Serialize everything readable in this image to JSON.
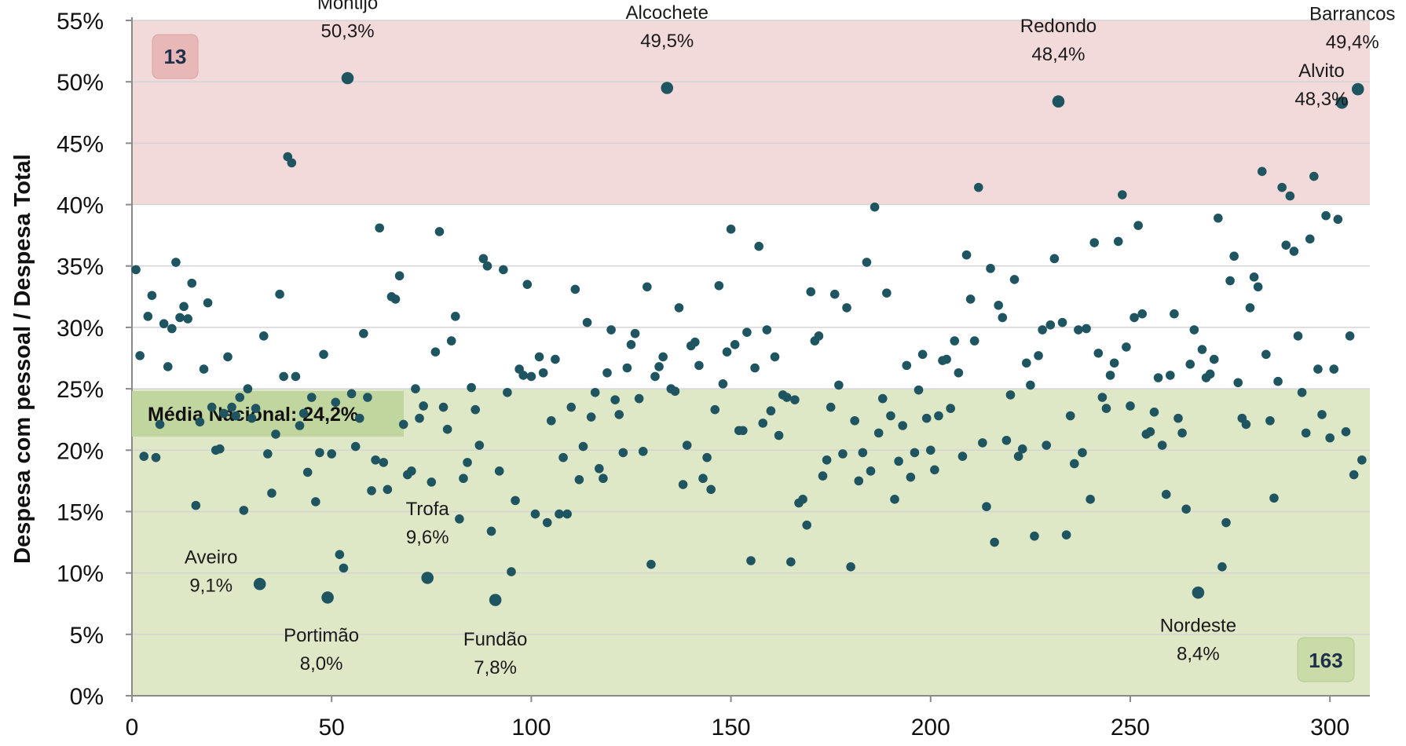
{
  "chart_data": {
    "type": "scatter",
    "title": "",
    "xlabel": "",
    "ylabel": "Despesa com pessoal / Despesa Total",
    "xlim": [
      0,
      310
    ],
    "ylim": [
      0,
      55
    ],
    "x_ticks": [
      "0",
      "50",
      "100",
      "150",
      "200",
      "250",
      "300"
    ],
    "y_ticks": [
      "0%",
      "5%",
      "10%",
      "15%",
      "20%",
      "25%",
      "30%",
      "35%",
      "40%",
      "45%",
      "50%",
      "55%"
    ],
    "grid": "horizontal",
    "bands": [
      {
        "from": 0,
        "to": 25,
        "color": "#dfe8c6"
      },
      {
        "from": 40,
        "to": 55,
        "color": "#f2dada"
      }
    ],
    "average": {
      "label": "Média Nacional: 24,2%",
      "value": 24.2
    },
    "count_high": "13",
    "count_low": "163",
    "point_color": "#1f5560",
    "annotations": [
      {
        "name": "Montijo",
        "value_text": "50,3%",
        "x": 54,
        "y": 50.3
      },
      {
        "name": "Alcochete",
        "value_text": "49,5%",
        "x": 134,
        "y": 49.5
      },
      {
        "name": "Redondo",
        "value_text": "48,4%",
        "x": 232,
        "y": 48.4
      },
      {
        "name": "Barrancos",
        "value_text": "49,4%",
        "x": 307,
        "y": 49.4
      },
      {
        "name": "Alvito",
        "value_text": "48,3%",
        "x": 303,
        "y": 48.3
      },
      {
        "name": "Aveiro",
        "value_text": "9,1%",
        "x": 32,
        "y": 9.1
      },
      {
        "name": "Portimão",
        "value_text": "8,0%",
        "x": 49,
        "y": 8.0
      },
      {
        "name": "Trofa",
        "value_text": "9,6%",
        "x": 74,
        "y": 9.6
      },
      {
        "name": "Fundão",
        "value_text": "7,8%",
        "x": 91,
        "y": 7.8
      },
      {
        "name": "Nordeste",
        "value_text": "8,4%",
        "x": 267,
        "y": 8.4
      }
    ],
    "points": [
      [
        1,
        34.7
      ],
      [
        2,
        27.7
      ],
      [
        3,
        19.5
      ],
      [
        4,
        30.9
      ],
      [
        5,
        32.6
      ],
      [
        6,
        19.4
      ],
      [
        7,
        22.1
      ],
      [
        8,
        30.3
      ],
      [
        9,
        26.8
      ],
      [
        10,
        29.9
      ],
      [
        11,
        35.3
      ],
      [
        12,
        30.8
      ],
      [
        13,
        31.7
      ],
      [
        14,
        30.7
      ],
      [
        15,
        33.6
      ],
      [
        16,
        15.5
      ],
      [
        17,
        22.3
      ],
      [
        18,
        26.6
      ],
      [
        19,
        32.0
      ],
      [
        20,
        23.5
      ],
      [
        21,
        20.0
      ],
      [
        22,
        20.1
      ],
      [
        23,
        23.0
      ],
      [
        24,
        27.6
      ],
      [
        25,
        23.5
      ],
      [
        26,
        22.8
      ],
      [
        27,
        24.3
      ],
      [
        28,
        15.1
      ],
      [
        29,
        25.0
      ],
      [
        30,
        22.6
      ],
      [
        31,
        23.4
      ],
      [
        33,
        29.3
      ],
      [
        34,
        19.7
      ],
      [
        35,
        16.5
      ],
      [
        36,
        21.3
      ],
      [
        37,
        32.7
      ],
      [
        38,
        26.0
      ],
      [
        39,
        43.9
      ],
      [
        40,
        43.4
      ],
      [
        41,
        26.0
      ],
      [
        42,
        22.0
      ],
      [
        43,
        23.0
      ],
      [
        44,
        18.2
      ],
      [
        45,
        24.3
      ],
      [
        46,
        15.8
      ],
      [
        47,
        19.8
      ],
      [
        48,
        27.8
      ],
      [
        50,
        19.7
      ],
      [
        51,
        23.9
      ],
      [
        52,
        11.5
      ],
      [
        53,
        10.4
      ],
      [
        55,
        24.6
      ],
      [
        56,
        20.3
      ],
      [
        57,
        22.6
      ],
      [
        58,
        29.5
      ],
      [
        59,
        24.3
      ],
      [
        60,
        16.7
      ],
      [
        61,
        19.2
      ],
      [
        62,
        38.1
      ],
      [
        63,
        19.0
      ],
      [
        64,
        16.8
      ],
      [
        65,
        32.5
      ],
      [
        66,
        32.3
      ],
      [
        67,
        34.2
      ],
      [
        68,
        22.1
      ],
      [
        69,
        18.0
      ],
      [
        70,
        18.3
      ],
      [
        71,
        25.0
      ],
      [
        72,
        22.6
      ],
      [
        73,
        23.6
      ],
      [
        75,
        17.4
      ],
      [
        76,
        28.0
      ],
      [
        77,
        37.8
      ],
      [
        78,
        23.5
      ],
      [
        79,
        21.7
      ],
      [
        80,
        28.9
      ],
      [
        81,
        30.9
      ],
      [
        82,
        14.4
      ],
      [
        83,
        17.7
      ],
      [
        84,
        19.0
      ],
      [
        85,
        25.1
      ],
      [
        86,
        23.3
      ],
      [
        87,
        20.4
      ],
      [
        88,
        35.6
      ],
      [
        89,
        35.0
      ],
      [
        90,
        13.4
      ],
      [
        92,
        18.3
      ],
      [
        93,
        34.7
      ],
      [
        94,
        24.7
      ],
      [
        95,
        10.1
      ],
      [
        96,
        15.9
      ],
      [
        97,
        26.6
      ],
      [
        98,
        26.1
      ],
      [
        99,
        33.5
      ],
      [
        100,
        26.0
      ],
      [
        101,
        14.8
      ],
      [
        102,
        27.6
      ],
      [
        103,
        26.3
      ],
      [
        104,
        14.1
      ],
      [
        105,
        22.4
      ],
      [
        106,
        27.4
      ],
      [
        107,
        14.8
      ],
      [
        108,
        19.4
      ],
      [
        109,
        14.8
      ],
      [
        110,
        23.5
      ],
      [
        111,
        33.1
      ],
      [
        112,
        17.6
      ],
      [
        113,
        20.3
      ],
      [
        114,
        30.4
      ],
      [
        115,
        22.7
      ],
      [
        116,
        24.7
      ],
      [
        117,
        18.5
      ],
      [
        118,
        17.7
      ],
      [
        119,
        26.3
      ],
      [
        120,
        29.8
      ],
      [
        121,
        24.1
      ],
      [
        122,
        22.9
      ],
      [
        123,
        19.8
      ],
      [
        124,
        26.7
      ],
      [
        125,
        28.6
      ],
      [
        126,
        29.5
      ],
      [
        127,
        24.2
      ],
      [
        128,
        19.9
      ],
      [
        129,
        33.3
      ],
      [
        130,
        10.7
      ],
      [
        131,
        26.0
      ],
      [
        132,
        26.8
      ],
      [
        133,
        27.6
      ],
      [
        135,
        25.0
      ],
      [
        136,
        24.8
      ],
      [
        137,
        31.6
      ],
      [
        138,
        17.2
      ],
      [
        139,
        20.4
      ],
      [
        140,
        28.5
      ],
      [
        141,
        28.8
      ],
      [
        142,
        26.9
      ],
      [
        143,
        17.7
      ],
      [
        144,
        19.4
      ],
      [
        145,
        16.8
      ],
      [
        146,
        23.3
      ],
      [
        147,
        33.4
      ],
      [
        148,
        25.4
      ],
      [
        149,
        28.0
      ],
      [
        150,
        38.0
      ],
      [
        151,
        28.6
      ],
      [
        152,
        21.6
      ],
      [
        153,
        21.6
      ],
      [
        154,
        29.6
      ],
      [
        155,
        11.0
      ],
      [
        156,
        26.7
      ],
      [
        157,
        36.6
      ],
      [
        158,
        22.2
      ],
      [
        159,
        29.8
      ],
      [
        160,
        23.2
      ],
      [
        161,
        27.6
      ],
      [
        162,
        21.2
      ],
      [
        163,
        24.5
      ],
      [
        164,
        24.3
      ],
      [
        165,
        10.9
      ],
      [
        166,
        24.1
      ],
      [
        167,
        15.7
      ],
      [
        168,
        16.0
      ],
      [
        169,
        13.9
      ],
      [
        170,
        32.9
      ],
      [
        171,
        28.9
      ],
      [
        172,
        29.3
      ],
      [
        173,
        17.9
      ],
      [
        174,
        19.2
      ],
      [
        175,
        23.5
      ],
      [
        176,
        32.7
      ],
      [
        177,
        25.3
      ],
      [
        178,
        19.7
      ],
      [
        179,
        31.6
      ],
      [
        180,
        10.5
      ],
      [
        181,
        22.4
      ],
      [
        182,
        17.5
      ],
      [
        183,
        19.8
      ],
      [
        184,
        35.3
      ],
      [
        185,
        18.3
      ],
      [
        186,
        39.8
      ],
      [
        187,
        21.4
      ],
      [
        188,
        24.2
      ],
      [
        189,
        32.8
      ],
      [
        190,
        22.8
      ],
      [
        191,
        16.0
      ],
      [
        192,
        19.1
      ],
      [
        193,
        22.0
      ],
      [
        194,
        26.9
      ],
      [
        195,
        17.8
      ],
      [
        196,
        19.8
      ],
      [
        197,
        24.9
      ],
      [
        198,
        27.8
      ],
      [
        199,
        22.6
      ],
      [
        200,
        20.0
      ],
      [
        201,
        18.4
      ],
      [
        202,
        22.8
      ],
      [
        203,
        27.3
      ],
      [
        204,
        27.4
      ],
      [
        205,
        23.4
      ],
      [
        206,
        28.9
      ],
      [
        207,
        26.3
      ],
      [
        208,
        19.5
      ],
      [
        209,
        35.9
      ],
      [
        210,
        32.3
      ],
      [
        211,
        28.9
      ],
      [
        212,
        41.4
      ],
      [
        213,
        20.6
      ],
      [
        214,
        15.4
      ],
      [
        215,
        34.8
      ],
      [
        216,
        12.5
      ],
      [
        217,
        31.8
      ],
      [
        218,
        30.8
      ],
      [
        219,
        20.8
      ],
      [
        220,
        24.5
      ],
      [
        221,
        33.9
      ],
      [
        222,
        19.5
      ],
      [
        223,
        20.1
      ],
      [
        224,
        27.1
      ],
      [
        225,
        25.3
      ],
      [
        226,
        13.0
      ],
      [
        227,
        27.7
      ],
      [
        228,
        29.8
      ],
      [
        229,
        20.4
      ],
      [
        230,
        30.2
      ],
      [
        231,
        35.6
      ],
      [
        233,
        30.4
      ],
      [
        234,
        13.1
      ],
      [
        235,
        22.8
      ],
      [
        236,
        18.9
      ],
      [
        237,
        29.8
      ],
      [
        238,
        19.8
      ],
      [
        239,
        29.9
      ],
      [
        240,
        16.0
      ],
      [
        241,
        36.9
      ],
      [
        242,
        27.9
      ],
      [
        243,
        24.3
      ],
      [
        244,
        23.4
      ],
      [
        245,
        26.1
      ],
      [
        246,
        27.1
      ],
      [
        247,
        37.0
      ],
      [
        248,
        40.8
      ],
      [
        249,
        28.4
      ],
      [
        250,
        23.6
      ],
      [
        251,
        30.8
      ],
      [
        252,
        38.3
      ],
      [
        253,
        31.1
      ],
      [
        254,
        21.3
      ],
      [
        255,
        21.5
      ],
      [
        256,
        23.1
      ],
      [
        257,
        25.9
      ],
      [
        258,
        20.4
      ],
      [
        259,
        16.4
      ],
      [
        260,
        26.1
      ],
      [
        261,
        31.1
      ],
      [
        262,
        22.6
      ],
      [
        263,
        21.4
      ],
      [
        264,
        15.2
      ],
      [
        265,
        27.0
      ],
      [
        266,
        29.8
      ],
      [
        268,
        28.2
      ],
      [
        269,
        25.9
      ],
      [
        270,
        26.2
      ],
      [
        271,
        27.4
      ],
      [
        272,
        38.9
      ],
      [
        273,
        10.5
      ],
      [
        274,
        14.1
      ],
      [
        275,
        33.8
      ],
      [
        276,
        35.8
      ],
      [
        277,
        25.5
      ],
      [
        278,
        22.6
      ],
      [
        279,
        22.1
      ],
      [
        280,
        31.6
      ],
      [
        281,
        34.1
      ],
      [
        282,
        33.3
      ],
      [
        283,
        42.7
      ],
      [
        284,
        27.8
      ],
      [
        285,
        22.4
      ],
      [
        286,
        16.1
      ],
      [
        287,
        25.6
      ],
      [
        288,
        41.4
      ],
      [
        289,
        36.7
      ],
      [
        290,
        40.7
      ],
      [
        291,
        36.2
      ],
      [
        292,
        29.3
      ],
      [
        293,
        24.7
      ],
      [
        294,
        21.4
      ],
      [
        295,
        37.2
      ],
      [
        296,
        42.3
      ],
      [
        297,
        26.6
      ],
      [
        298,
        22.9
      ],
      [
        299,
        39.1
      ],
      [
        300,
        21.0
      ],
      [
        301,
        26.6
      ],
      [
        302,
        38.8
      ],
      [
        304,
        21.5
      ],
      [
        305,
        29.3
      ],
      [
        306,
        18.0
      ],
      [
        308,
        19.2
      ]
    ]
  }
}
